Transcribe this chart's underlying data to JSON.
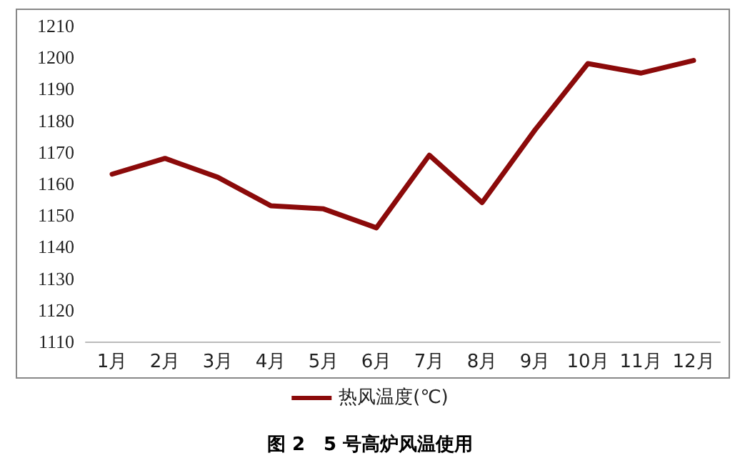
{
  "chart_data": {
    "type": "line",
    "title": "图 2　5 号高炉风温使用",
    "categories": [
      "1月",
      "2月",
      "3月",
      "4月",
      "5月",
      "6月",
      "7月",
      "8月",
      "9月",
      "10月",
      "11月",
      "12月"
    ],
    "series": [
      {
        "name": "热风温度(℃)",
        "color": "#8b0a0a",
        "values": [
          1163,
          1168,
          1162,
          1153,
          1152,
          1146,
          1169,
          1154,
          1177,
          1198,
          1195,
          1199
        ]
      }
    ],
    "ylim": [
      1110,
      1210
    ],
    "yticks": [
      1110,
      1120,
      1130,
      1140,
      1150,
      1160,
      1170,
      1180,
      1190,
      1200,
      1210
    ],
    "grid": false,
    "legend": "bottom",
    "marker": "none",
    "line_style": "solid"
  }
}
